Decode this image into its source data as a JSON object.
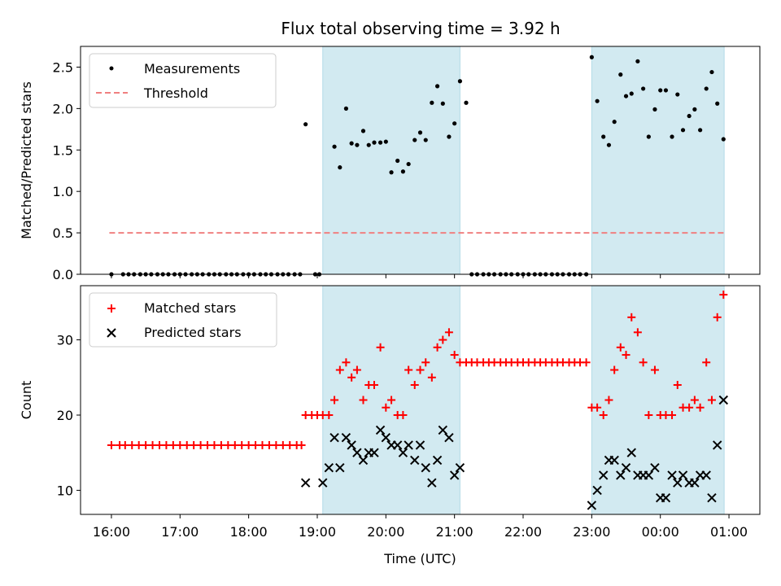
{
  "title": "Flux total observing time = 3.92 h",
  "colors": {
    "shade": "#add8e6",
    "matched": "#ff0000",
    "predicted": "#000000",
    "threshold": "#f08080"
  },
  "chart_data": [
    {
      "type": "scatter",
      "panel": "top",
      "title": "Flux total observing time = 3.92 h",
      "xlabel": "",
      "ylabel": "Matched/Predicted stars",
      "xlim": [
        15.55,
        25.45
      ],
      "ylim": [
        0,
        2.75
      ],
      "yticks": [
        0.0,
        0.5,
        1.0,
        1.5,
        2.0,
        2.5
      ],
      "ytick_labels": [
        "0.0",
        "0.5",
        "1.0",
        "1.5",
        "2.0",
        "2.5"
      ],
      "legend_position": "top-left",
      "shaded_spans": [
        [
          19.08,
          21.08
        ],
        [
          23.0,
          24.93
        ]
      ],
      "series": [
        {
          "name": "Measurements",
          "marker": "dot",
          "points": [
            [
              16.0,
              0
            ],
            [
              16.17,
              0
            ],
            [
              16.25,
              0
            ],
            [
              16.33,
              0
            ],
            [
              16.42,
              0
            ],
            [
              16.5,
              0
            ],
            [
              16.58,
              0
            ],
            [
              16.67,
              0
            ],
            [
              16.75,
              0
            ],
            [
              16.83,
              0
            ],
            [
              16.92,
              0
            ],
            [
              17.0,
              0
            ],
            [
              17.08,
              0
            ],
            [
              17.17,
              0
            ],
            [
              17.25,
              0
            ],
            [
              17.33,
              0
            ],
            [
              17.42,
              0
            ],
            [
              17.5,
              0
            ],
            [
              17.58,
              0
            ],
            [
              17.67,
              0
            ],
            [
              17.75,
              0
            ],
            [
              17.83,
              0
            ],
            [
              17.92,
              0
            ],
            [
              18.0,
              0
            ],
            [
              18.08,
              0
            ],
            [
              18.17,
              0
            ],
            [
              18.25,
              0
            ],
            [
              18.33,
              0
            ],
            [
              18.42,
              0
            ],
            [
              18.5,
              0
            ],
            [
              18.58,
              0
            ],
            [
              18.67,
              0
            ],
            [
              18.75,
              0
            ],
            [
              18.83,
              1.81
            ],
            [
              18.97,
              0
            ],
            [
              19.03,
              0
            ],
            [
              19.25,
              1.54
            ],
            [
              19.33,
              1.29
            ],
            [
              19.42,
              2.0
            ],
            [
              19.5,
              1.58
            ],
            [
              19.58,
              1.56
            ],
            [
              19.67,
              1.73
            ],
            [
              19.75,
              1.56
            ],
            [
              19.83,
              1.59
            ],
            [
              19.92,
              1.59
            ],
            [
              20.0,
              1.6
            ],
            [
              20.08,
              1.23
            ],
            [
              20.17,
              1.37
            ],
            [
              20.25,
              1.24
            ],
            [
              20.33,
              1.33
            ],
            [
              20.42,
              1.62
            ],
            [
              20.5,
              1.71
            ],
            [
              20.58,
              1.62
            ],
            [
              20.67,
              2.07
            ],
            [
              20.75,
              2.27
            ],
            [
              20.83,
              2.06
            ],
            [
              20.92,
              1.66
            ],
            [
              21.0,
              1.82
            ],
            [
              21.08,
              2.33
            ],
            [
              21.17,
              2.07
            ],
            [
              21.25,
              0
            ],
            [
              21.33,
              0
            ],
            [
              21.42,
              0
            ],
            [
              21.5,
              0
            ],
            [
              21.58,
              0
            ],
            [
              21.67,
              0
            ],
            [
              21.75,
              0
            ],
            [
              21.83,
              0
            ],
            [
              21.92,
              0
            ],
            [
              22.0,
              0
            ],
            [
              22.08,
              0
            ],
            [
              22.17,
              0
            ],
            [
              22.25,
              0
            ],
            [
              22.33,
              0
            ],
            [
              22.42,
              0
            ],
            [
              22.5,
              0
            ],
            [
              22.58,
              0
            ],
            [
              22.67,
              0
            ],
            [
              22.75,
              0
            ],
            [
              22.83,
              0
            ],
            [
              22.92,
              0
            ],
            [
              23.0,
              2.62
            ],
            [
              23.08,
              2.09
            ],
            [
              23.17,
              1.66
            ],
            [
              23.25,
              1.56
            ],
            [
              23.33,
              1.84
            ],
            [
              23.42,
              2.41
            ],
            [
              23.5,
              2.15
            ],
            [
              23.58,
              2.18
            ],
            [
              23.67,
              2.57
            ],
            [
              23.75,
              2.24
            ],
            [
              23.83,
              1.66
            ],
            [
              23.92,
              1.99
            ],
            [
              24.0,
              2.22
            ],
            [
              24.08,
              2.22
            ],
            [
              24.17,
              1.66
            ],
            [
              24.25,
              2.17
            ],
            [
              24.33,
              1.74
            ],
            [
              24.42,
              1.91
            ],
            [
              24.5,
              1.99
            ],
            [
              24.58,
              1.74
            ],
            [
              24.67,
              2.24
            ],
            [
              24.75,
              2.44
            ],
            [
              24.83,
              2.06
            ],
            [
              24.92,
              1.63
            ]
          ]
        },
        {
          "name": "Threshold",
          "style": "dashed",
          "points": [
            [
              15.97,
              0.5
            ],
            [
              24.93,
              0.5
            ]
          ]
        }
      ]
    },
    {
      "type": "scatter",
      "panel": "bottom",
      "xlabel": "Time (UTC)",
      "ylabel": "Count",
      "xlim": [
        15.55,
        25.45
      ],
      "ylim": [
        6.8,
        37.2
      ],
      "yticks": [
        10,
        20,
        30
      ],
      "ytick_labels": [
        "10",
        "20",
        "30"
      ],
      "xticks": [
        16,
        17,
        18,
        19,
        20,
        21,
        22,
        23,
        24,
        25
      ],
      "xtick_labels": [
        "16:00",
        "17:00",
        "18:00",
        "19:00",
        "20:00",
        "21:00",
        "22:00",
        "23:00",
        "00:00",
        "01:00"
      ],
      "legend_position": "top-left",
      "shaded_spans": [
        [
          19.08,
          21.08
        ],
        [
          23.0,
          24.93
        ]
      ],
      "series": [
        {
          "name": "Matched stars",
          "marker": "plus",
          "points": [
            [
              16.0,
              16
            ],
            [
              16.12,
              16
            ],
            [
              16.2,
              16
            ],
            [
              16.3,
              16
            ],
            [
              16.4,
              16
            ],
            [
              16.5,
              16
            ],
            [
              16.6,
              16
            ],
            [
              16.7,
              16
            ],
            [
              16.8,
              16
            ],
            [
              16.9,
              16
            ],
            [
              17.0,
              16
            ],
            [
              17.1,
              16
            ],
            [
              17.2,
              16
            ],
            [
              17.3,
              16
            ],
            [
              17.4,
              16
            ],
            [
              17.5,
              16
            ],
            [
              17.6,
              16
            ],
            [
              17.7,
              16
            ],
            [
              17.8,
              16
            ],
            [
              17.9,
              16
            ],
            [
              18.0,
              16
            ],
            [
              18.1,
              16
            ],
            [
              18.2,
              16
            ],
            [
              18.3,
              16
            ],
            [
              18.4,
              16
            ],
            [
              18.5,
              16
            ],
            [
              18.6,
              16
            ],
            [
              18.7,
              16
            ],
            [
              18.77,
              16
            ],
            [
              18.83,
              20
            ],
            [
              18.92,
              20
            ],
            [
              19.0,
              20
            ],
            [
              19.08,
              20
            ],
            [
              19.17,
              20
            ],
            [
              19.25,
              22
            ],
            [
              19.33,
              26
            ],
            [
              19.42,
              27
            ],
            [
              19.5,
              25
            ],
            [
              19.58,
              26
            ],
            [
              19.67,
              22
            ],
            [
              19.75,
              24
            ],
            [
              19.83,
              24
            ],
            [
              19.92,
              29
            ],
            [
              20.0,
              21
            ],
            [
              20.08,
              22
            ],
            [
              20.17,
              20
            ],
            [
              20.25,
              20
            ],
            [
              20.33,
              26
            ],
            [
              20.42,
              24
            ],
            [
              20.5,
              26
            ],
            [
              20.58,
              27
            ],
            [
              20.67,
              25
            ],
            [
              20.75,
              29
            ],
            [
              20.83,
              30
            ],
            [
              20.92,
              31
            ],
            [
              21.0,
              28
            ],
            [
              21.08,
              27
            ],
            [
              21.17,
              27
            ],
            [
              21.25,
              27
            ],
            [
              21.33,
              27
            ],
            [
              21.42,
              27
            ],
            [
              21.5,
              27
            ],
            [
              21.58,
              27
            ],
            [
              21.67,
              27
            ],
            [
              21.75,
              27
            ],
            [
              21.83,
              27
            ],
            [
              21.92,
              27
            ],
            [
              22.0,
              27
            ],
            [
              22.08,
              27
            ],
            [
              22.17,
              27
            ],
            [
              22.25,
              27
            ],
            [
              22.33,
              27
            ],
            [
              22.42,
              27
            ],
            [
              22.5,
              27
            ],
            [
              22.58,
              27
            ],
            [
              22.67,
              27
            ],
            [
              22.75,
              27
            ],
            [
              22.83,
              27
            ],
            [
              22.92,
              27
            ],
            [
              23.0,
              21
            ],
            [
              23.08,
              21
            ],
            [
              23.17,
              20
            ],
            [
              23.25,
              22
            ],
            [
              23.33,
              26
            ],
            [
              23.42,
              29
            ],
            [
              23.5,
              28
            ],
            [
              23.58,
              33
            ],
            [
              23.67,
              31
            ],
            [
              23.75,
              27
            ],
            [
              23.83,
              20
            ],
            [
              23.92,
              26
            ],
            [
              24.0,
              20
            ],
            [
              24.08,
              20
            ],
            [
              24.17,
              20
            ],
            [
              24.25,
              24
            ],
            [
              24.33,
              21
            ],
            [
              24.42,
              21
            ],
            [
              24.5,
              22
            ],
            [
              24.58,
              21
            ],
            [
              24.67,
              27
            ],
            [
              24.75,
              22
            ],
            [
              24.83,
              33
            ],
            [
              24.92,
              36
            ]
          ]
        },
        {
          "name": "Predicted stars",
          "marker": "x",
          "points": [
            [
              18.83,
              11
            ],
            [
              19.08,
              11
            ],
            [
              19.17,
              13
            ],
            [
              19.25,
              17
            ],
            [
              19.33,
              13
            ],
            [
              19.42,
              17
            ],
            [
              19.5,
              16
            ],
            [
              19.58,
              15
            ],
            [
              19.67,
              14
            ],
            [
              19.75,
              15
            ],
            [
              19.83,
              15
            ],
            [
              19.92,
              18
            ],
            [
              20.0,
              17
            ],
            [
              20.08,
              16
            ],
            [
              20.17,
              16
            ],
            [
              20.25,
              15
            ],
            [
              20.33,
              16
            ],
            [
              20.42,
              14
            ],
            [
              20.5,
              16
            ],
            [
              20.58,
              13
            ],
            [
              20.67,
              11
            ],
            [
              20.75,
              14
            ],
            [
              20.83,
              18
            ],
            [
              20.92,
              17
            ],
            [
              21.0,
              12
            ],
            [
              21.08,
              13
            ],
            [
              23.0,
              8
            ],
            [
              23.08,
              10
            ],
            [
              23.17,
              12
            ],
            [
              23.25,
              14
            ],
            [
              23.33,
              14
            ],
            [
              23.42,
              12
            ],
            [
              23.5,
              13
            ],
            [
              23.58,
              15
            ],
            [
              23.67,
              12
            ],
            [
              23.75,
              12
            ],
            [
              23.83,
              12
            ],
            [
              23.92,
              13
            ],
            [
              24.0,
              9
            ],
            [
              24.08,
              9
            ],
            [
              24.17,
              12
            ],
            [
              24.25,
              11
            ],
            [
              24.33,
              12
            ],
            [
              24.42,
              11
            ],
            [
              24.5,
              11
            ],
            [
              24.58,
              12
            ],
            [
              24.67,
              12
            ],
            [
              24.75,
              9
            ],
            [
              24.83,
              16
            ],
            [
              24.92,
              22
            ]
          ]
        }
      ]
    }
  ]
}
